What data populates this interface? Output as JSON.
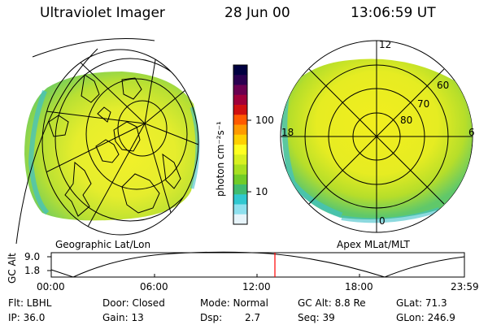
{
  "header": {
    "instrument": "Ultraviolet Imager",
    "date": "28 Jun 00",
    "time": "13:06:59 UT"
  },
  "colorbar": {
    "label": "photon cm⁻²s⁻¹",
    "ticks": [
      "100",
      "10"
    ],
    "colors": [
      "#000040",
      "#2a0050",
      "#6a0050",
      "#a0003a",
      "#d01010",
      "#ff5a00",
      "#ff9a00",
      "#ffd000",
      "#ffff20",
      "#d8f020",
      "#a8e020",
      "#70cc28",
      "#40bc70",
      "#30c8d0",
      "#8ee0ee",
      "#e6f4fa"
    ]
  },
  "geo_panel": {
    "caption": "Geographic Lat/Lon"
  },
  "mag_panel": {
    "caption": "Apex MLat/MLT",
    "mlt_labels": [
      "12",
      "18",
      "6",
      "0"
    ],
    "lat_labels": [
      "60",
      "70",
      "80"
    ]
  },
  "timeline": {
    "ylabel": "GC Alt",
    "yticks": [
      "9.0",
      "1.8"
    ],
    "xticks": [
      "00:00",
      "06:00",
      "12:00",
      "18:00",
      "23:59"
    ],
    "marker_time": "13:06:59",
    "marker_color": "#ff0000"
  },
  "info": {
    "flt": "Flt: LBHL",
    "ip": "IP: 36.0",
    "door": "Door: Closed",
    "gain": "Gain: 13",
    "mode": "Mode: Normal",
    "dsp_label": "Dsp:",
    "dsp_value": "2.7",
    "gc_alt": "GC Alt: 8.8 Re",
    "seq": "Seq: 39",
    "glat": "GLat: 71.3",
    "glon": "GLon: 246.9"
  }
}
